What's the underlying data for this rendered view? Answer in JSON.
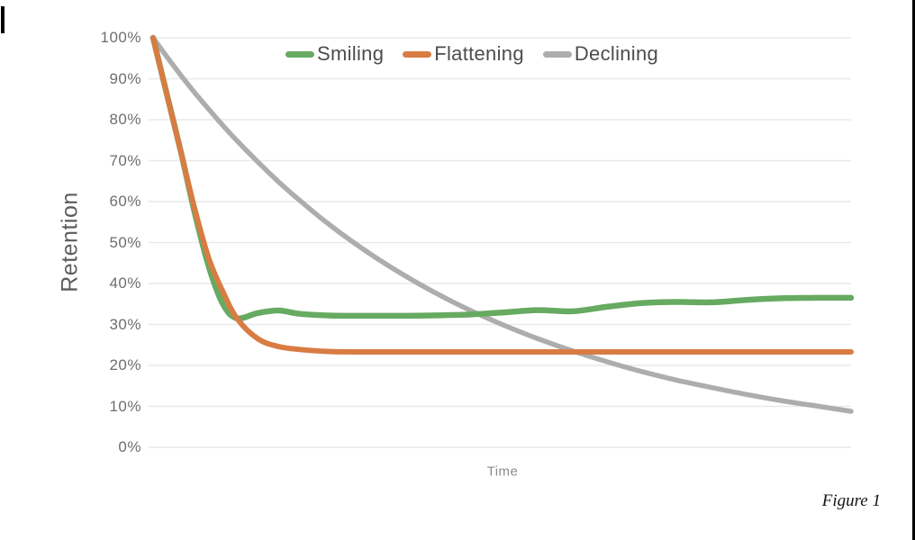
{
  "caption": "Figure 1",
  "colors": {
    "background": "#ffffff",
    "grid": "#e9e9e9",
    "axis_text": "#6e6e6e",
    "legend_text": "#4d4d4d",
    "border": "#000000"
  },
  "chart_data": {
    "type": "line",
    "title": "",
    "xlabel": "Time",
    "ylabel": "Retention",
    "x_range": [
      0,
      100
    ],
    "ylim": [
      0,
      100
    ],
    "grid": "horizontal-only",
    "legend_position": "top-center-inside",
    "y_ticks": [
      "100%",
      "90%",
      "80%",
      "70%",
      "60%",
      "50%",
      "40%",
      "30%",
      "20%",
      "10%",
      "0%"
    ],
    "x": [
      0,
      2,
      4,
      6,
      8,
      10,
      12,
      15,
      18,
      21,
      25,
      30,
      35,
      40,
      45,
      50,
      55,
      60,
      65,
      70,
      75,
      80,
      85,
      90,
      95,
      100
    ],
    "series": [
      {
        "name": "Smiling",
        "color": "#67aa61",
        "values": [
          100,
          86,
          72,
          57,
          44,
          35,
          31.5,
          32.8,
          33.4,
          32.6,
          32.2,
          32.1,
          32.1,
          32.2,
          32.4,
          32.9,
          33.5,
          33.2,
          34.3,
          35.2,
          35.5,
          35.4,
          36,
          36.4,
          36.5,
          36.5
        ]
      },
      {
        "name": "Flattening",
        "color": "#d87c44",
        "values": [
          100,
          86,
          72,
          58,
          46,
          38,
          31.5,
          26.5,
          24.6,
          23.9,
          23.4,
          23.3,
          23.3,
          23.3,
          23.3,
          23.3,
          23.3,
          23.3,
          23.3,
          23.3,
          23.3,
          23.3,
          23.3,
          23.3,
          23.3,
          23.3
        ]
      },
      {
        "name": "Declining",
        "color": "#adadad",
        "values": [
          100,
          95.3,
          90.8,
          86.5,
          82.5,
          78.6,
          74.9,
          69.7,
          64.8,
          60.3,
          54.7,
          48.5,
          43,
          38.1,
          33.8,
          30,
          26.6,
          23.6,
          20.9,
          18.5,
          16.4,
          14.6,
          12.9,
          11.4,
          10.1,
          8.8
        ]
      }
    ]
  }
}
